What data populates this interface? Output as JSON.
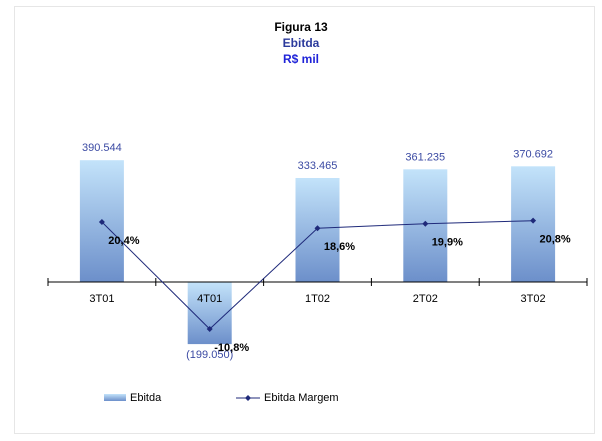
{
  "title": {
    "line1": "Figura 13",
    "line2": "Ebitda",
    "line3": "R$ mil"
  },
  "colors": {
    "bar_top": "#c3e3fa",
    "bar_bottom": "#6c8fca",
    "line": "#1f2a7a",
    "value_label": "#3b4aa3",
    "title_line2": "#2b3a9c",
    "title_line3": "#1f23d8"
  },
  "chart_data": {
    "type": "bar",
    "categories": [
      "3T01",
      "4T01",
      "1T02",
      "2T02",
      "3T02"
    ],
    "series": [
      {
        "name": "Ebitda",
        "type": "bar",
        "values": [
          390544,
          -199050,
          333465,
          361235,
          370692
        ],
        "labels": [
          "390.544",
          "(199.050)",
          "333.465",
          "361.235",
          "370.692"
        ]
      },
      {
        "name": "Ebitda Margem",
        "type": "line",
        "values": [
          20.4,
          -10.8,
          18.6,
          19.9,
          20.8
        ],
        "labels": [
          "20,4%",
          "-10,8%",
          "18,6%",
          "19,9%",
          "20,8%"
        ]
      }
    ],
    "legend_position": "bottom-left",
    "grid": false
  }
}
